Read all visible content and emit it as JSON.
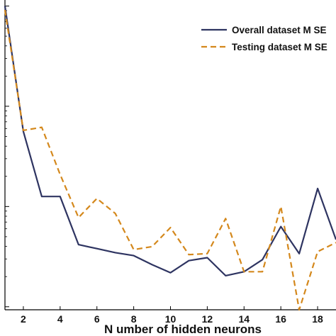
{
  "chart_data": {
    "type": "line",
    "title": "",
    "xlabel": "N umber of hidden neurons",
    "ylabel": "",
    "xlim": [
      1,
      19
    ],
    "ylim_log10": [
      -4.03,
      -0.94
    ],
    "y_scale": "log",
    "x_ticks": [
      2,
      4,
      6,
      8,
      10,
      12,
      14,
      16,
      18
    ],
    "grid": false,
    "legend_position": "top-right",
    "x": [
      1,
      2,
      3,
      4,
      5,
      6,
      7,
      8,
      9,
      10,
      11,
      12,
      13,
      14,
      15,
      16,
      17,
      18,
      19
    ],
    "series": [
      {
        "name": "Overall dataset M SE",
        "color": "#2e3461",
        "dash": "solid",
        "log10_values": [
          -1.0,
          -2.25,
          -2.9,
          -2.9,
          -3.38,
          -3.42,
          -3.46,
          -3.49,
          -3.58,
          -3.66,
          -3.54,
          -3.51,
          -3.69,
          -3.65,
          -3.53,
          -3.2,
          -3.47,
          -2.82,
          -3.33
        ]
      },
      {
        "name": "Testing dataset M SE",
        "color": "#d4881c",
        "dash": "dashed",
        "log10_values": [
          -1.04,
          -2.24,
          -2.21,
          -2.68,
          -3.11,
          -2.92,
          -3.07,
          -3.43,
          -3.4,
          -3.21,
          -3.48,
          -3.47,
          -3.12,
          -3.65,
          -3.65,
          -3.0,
          -4.03,
          -3.45,
          -3.36
        ]
      }
    ]
  }
}
